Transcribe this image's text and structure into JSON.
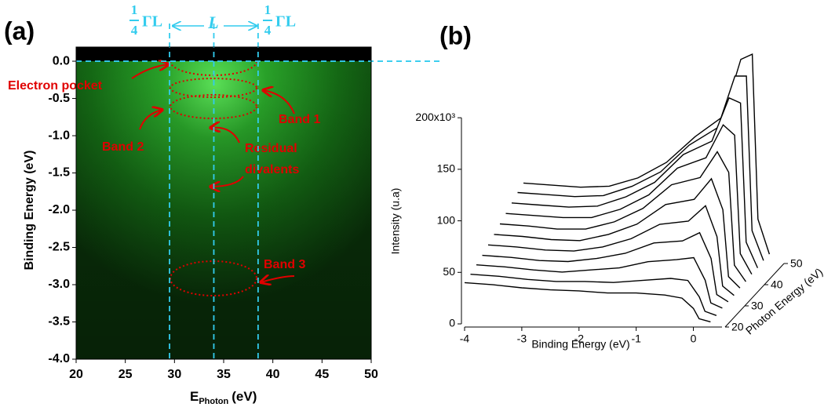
{
  "chart_data": [
    {
      "type": "heatmap",
      "panel_label": "(a)",
      "x_label": {
        "main": "E",
        "sub": "Photon",
        "unit": "(eV)"
      },
      "y_label": "Binding Energy (eV)",
      "xlim": [
        20,
        50
      ],
      "xticks": [
        20,
        25,
        30,
        35,
        40,
        45,
        50
      ],
      "ylim": [
        -4,
        0.19
      ],
      "yticks": [
        {
          "value": 0,
          "label": "0.0"
        },
        -0.5,
        {
          "value": -1,
          "label": "-1.0"
        },
        -1.5,
        {
          "value": -2,
          "label": "-2.0"
        },
        -2.5,
        {
          "value": -3,
          "label": "-3.0"
        },
        -3.5,
        {
          "value": -4,
          "label": "-4.0"
        }
      ],
      "vlines": [
        29.5,
        34,
        38.5
      ],
      "hline": 0,
      "top_labels": [
        {
          "num": "1",
          "den": "4",
          "sym": "ΓL"
        },
        {
          "sym": "L"
        },
        {
          "num": "1",
          "den": "4",
          "sym": "ΓL"
        }
      ],
      "annotations": [
        "Electron pocket",
        "Band 1",
        "Band 2",
        "Residual",
        "divalents",
        "Band 3"
      ]
    },
    {
      "type": "waterfall",
      "panel_label": "(b)",
      "x_label": "Binding Energy (eV)",
      "y_label": "Intensity (u.a)",
      "z_label": "Photon Energy (eV)",
      "xlim": [
        -4,
        0.5
      ],
      "xticks": [
        -4,
        -3,
        -2,
        -1,
        0
      ],
      "ylim": [
        0,
        210000
      ],
      "yticks": [
        {
          "value": 0,
          "label": "0"
        },
        {
          "value": 50000,
          "label": "50"
        },
        {
          "value": 100000,
          "label": "100"
        },
        {
          "value": 150000,
          "label": "150"
        },
        {
          "value": 200000,
          "label": "200x10³"
        }
      ],
      "zlim": [
        20,
        50
      ],
      "zticks": [
        20,
        30,
        40,
        50
      ],
      "x": [
        -4,
        -3.5,
        -3,
        -2.5,
        -2,
        -1.5,
        -1,
        -0.5,
        -0.2,
        0,
        0.1,
        0.3
      ],
      "series": [
        {
          "z": 20,
          "values": [
            40000,
            38000,
            35000,
            33000,
            32000,
            30000,
            30000,
            28000,
            25000,
            15000,
            5000,
            2000
          ]
        },
        {
          "z": 23,
          "values": [
            42000,
            40000,
            37000,
            35000,
            35000,
            34000,
            36000,
            38000,
            36000,
            20000,
            6000,
            2000
          ]
        },
        {
          "z": 26,
          "values": [
            45000,
            43000,
            40000,
            38000,
            40000,
            42000,
            48000,
            50000,
            52000,
            30000,
            8000,
            3000
          ]
        },
        {
          "z": 29,
          "values": [
            48000,
            46000,
            43000,
            42000,
            45000,
            50000,
            60000,
            62000,
            70000,
            45000,
            10000,
            3000
          ]
        },
        {
          "z": 32,
          "values": [
            52000,
            50000,
            47000,
            46000,
            50000,
            58000,
            72000,
            75000,
            90000,
            60000,
            12000,
            3000
          ]
        },
        {
          "z": 35,
          "values": [
            56000,
            54000,
            51000,
            50000,
            56000,
            66000,
            85000,
            90000,
            110000,
            80000,
            15000,
            4000
          ]
        },
        {
          "z": 38,
          "values": [
            60000,
            58000,
            55000,
            55000,
            62000,
            75000,
            98000,
            105000,
            130000,
            110000,
            20000,
            4000
          ]
        },
        {
          "z": 41,
          "values": [
            64000,
            62000,
            60000,
            60000,
            68000,
            82000,
            108000,
            118000,
            150000,
            140000,
            25000,
            5000
          ]
        },
        {
          "z": 44,
          "values": [
            68000,
            66000,
            64000,
            65000,
            74000,
            88000,
            115000,
            128000,
            170000,
            165000,
            30000,
            5000
          ]
        },
        {
          "z": 47,
          "values": [
            72000,
            70000,
            68000,
            69000,
            78000,
            92000,
            118000,
            135000,
            185000,
            185000,
            35000,
            6000
          ]
        },
        {
          "z": 50,
          "values": [
            75000,
            73000,
            71000,
            72000,
            80000,
            95000,
            120000,
            140000,
            195000,
            200000,
            40000,
            6000
          ]
        }
      ]
    }
  ]
}
